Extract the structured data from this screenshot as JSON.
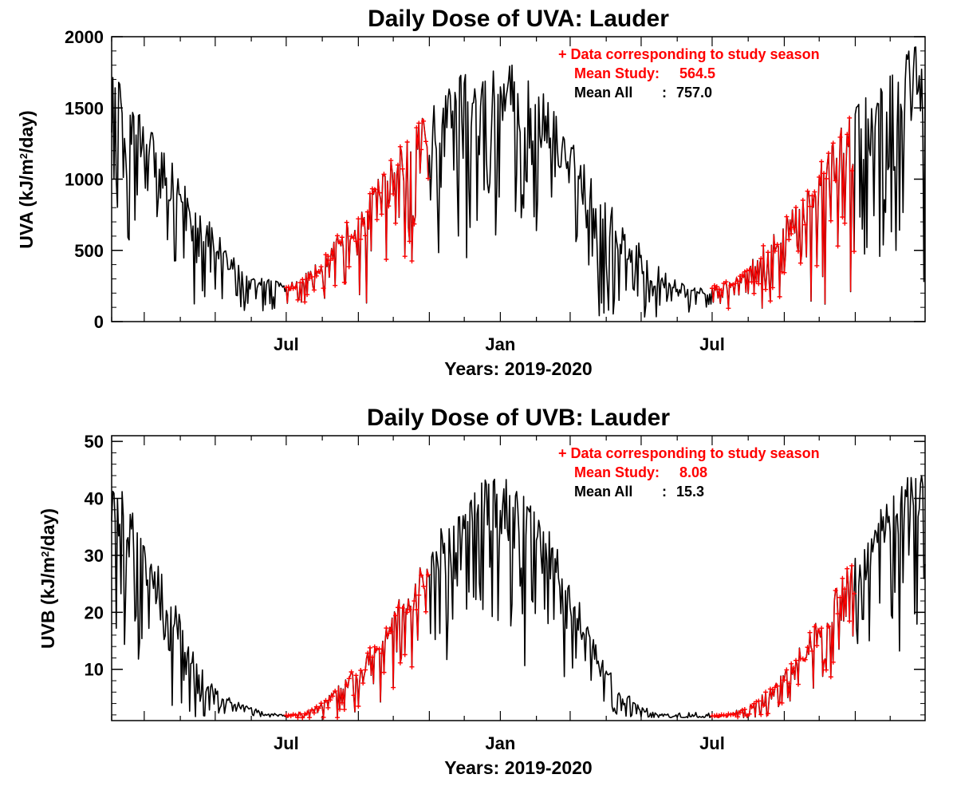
{
  "chart_data": [
    {
      "type": "line",
      "title": "Daily Dose of UVA: Lauder",
      "xlabel": "Years: 2019-2020",
      "ylabel": {
        "prefix": "UVA (kJ/m",
        "sup": "2",
        "suffix": "/day)"
      },
      "x_range": [
        "2019-02-01",
        "2020-12-31"
      ],
      "ylim": [
        0,
        2000
      ],
      "y_ticks": [
        0,
        500,
        1000,
        1500,
        2000
      ],
      "x_ticks": [
        {
          "date": "2019-07-01",
          "label": "Jul"
        },
        {
          "date": "2020-01-01",
          "label": "Jan"
        },
        {
          "date": "2020-07-01",
          "label": "Jul"
        }
      ],
      "legend": {
        "placement": "top-right",
        "study_label": "+ Data corresponding to study season",
        "mean_study_label": "Mean Study:",
        "mean_study_value": "564.5",
        "mean_all_label": "Mean All",
        "mean_all_sep": ":",
        "mean_all_value": "757.0"
      },
      "colors": {
        "all": "#000000",
        "study": "#ff0000"
      },
      "study_seasons": [
        [
          "2019-07-01",
          "2019-10-31"
        ],
        [
          "2020-07-01",
          "2020-10-31"
        ]
      ],
      "series": [
        {
          "name": "All",
          "x": [
            "2019-02-01",
            "2019-02-15",
            "2019-03-01",
            "2019-03-15",
            "2019-04-01",
            "2019-04-15",
            "2019-05-01",
            "2019-05-15",
            "2019-06-01",
            "2019-06-15",
            "2019-07-01",
            "2019-07-15",
            "2019-08-01",
            "2019-08-15",
            "2019-09-01",
            "2019-09-15",
            "2019-10-01",
            "2019-10-15",
            "2019-11-01",
            "2019-11-15",
            "2019-12-01",
            "2019-12-15",
            "2020-01-01",
            "2020-01-15",
            "2020-02-01",
            "2020-02-15",
            "2020-03-01",
            "2020-03-15",
            "2020-04-01",
            "2020-04-15",
            "2020-05-01",
            "2020-05-15",
            "2020-06-01",
            "2020-06-15",
            "2020-07-01",
            "2020-07-15",
            "2020-08-01",
            "2020-08-15",
            "2020-09-01",
            "2020-09-15",
            "2020-10-01",
            "2020-10-15",
            "2020-11-01",
            "2020-11-15",
            "2020-12-01",
            "2020-12-15",
            "2020-12-31"
          ],
          "y": [
            1500,
            1350,
            1200,
            1050,
            850,
            700,
            500,
            400,
            300,
            250,
            230,
            280,
            380,
            500,
            650,
            800,
            950,
            1100,
            1250,
            1400,
            1500,
            1550,
            1550,
            1500,
            1400,
            1250,
            1100,
            900,
            700,
            550,
            400,
            300,
            230,
            200,
            210,
            250,
            330,
            450,
            600,
            750,
            900,
            1050,
            1200,
            1350,
            1450,
            1550,
            1600
          ],
          "amplitude": [
            400,
            400,
            350,
            350,
            300,
            250,
            200,
            150,
            100,
            80,
            60,
            70,
            100,
            180,
            250,
            300,
            350,
            350,
            400,
            400,
            450,
            450,
            450,
            450,
            450,
            400,
            400,
            350,
            300,
            250,
            200,
            150,
            80,
            60,
            60,
            70,
            100,
            150,
            200,
            300,
            350,
            400,
            450,
            500,
            550,
            550,
            600
          ]
        }
      ]
    },
    {
      "type": "line",
      "title": "Daily Dose of UVB: Lauder",
      "xlabel": "Years: 2019-2020",
      "ylabel": {
        "prefix": "UVB (kJ/m",
        "sup": "2",
        "suffix": "/day)"
      },
      "x_range": [
        "2019-02-01",
        "2020-12-31"
      ],
      "ylim": [
        1,
        51
      ],
      "y_ticks": [
        10,
        20,
        30,
        40,
        50
      ],
      "x_ticks": [
        {
          "date": "2019-07-01",
          "label": "Jul"
        },
        {
          "date": "2020-01-01",
          "label": "Jan"
        },
        {
          "date": "2020-07-01",
          "label": "Jul"
        }
      ],
      "legend": {
        "placement": "top-right",
        "study_label": "+ Data corresponding to study season",
        "mean_study_label": "Mean Study:",
        "mean_study_value": "8.08",
        "mean_all_label": "Mean All",
        "mean_all_sep": ":",
        "mean_all_value": "15.3"
      },
      "colors": {
        "all": "#000000",
        "study": "#ff0000"
      },
      "study_seasons": [
        [
          "2019-07-01",
          "2019-10-31"
        ],
        [
          "2020-07-01",
          "2020-10-31"
        ]
      ],
      "series": [
        {
          "name": "All",
          "x": [
            "2019-02-01",
            "2019-02-15",
            "2019-03-01",
            "2019-03-15",
            "2019-04-01",
            "2019-04-15",
            "2019-05-01",
            "2019-05-15",
            "2019-06-01",
            "2019-06-15",
            "2019-07-01",
            "2019-07-15",
            "2019-08-01",
            "2019-08-15",
            "2019-09-01",
            "2019-09-15",
            "2019-10-01",
            "2019-10-15",
            "2019-11-01",
            "2019-11-15",
            "2019-12-01",
            "2019-12-15",
            "2020-01-01",
            "2020-01-15",
            "2020-02-01",
            "2020-02-15",
            "2020-03-01",
            "2020-03-15",
            "2020-04-01",
            "2020-04-15",
            "2020-05-01",
            "2020-05-15",
            "2020-06-01",
            "2020-06-15",
            "2020-07-01",
            "2020-07-15",
            "2020-08-01",
            "2020-08-15",
            "2020-09-01",
            "2020-09-15",
            "2020-10-01",
            "2020-10-15",
            "2020-11-01",
            "2020-11-15",
            "2020-12-01",
            "2020-12-15",
            "2020-12-31"
          ],
          "y": [
            38,
            33,
            28,
            22,
            16,
            10,
            6,
            4,
            3,
            2,
            1.8,
            2.2,
            3.5,
            6,
            9,
            13,
            17,
            22,
            27,
            31,
            35,
            37,
            38,
            36,
            33,
            28,
            22,
            15,
            9,
            5,
            3,
            2,
            1.6,
            1.5,
            1.6,
            2,
            3,
            5,
            8,
            12,
            16,
            21,
            26,
            31,
            35,
            37,
            39
          ],
          "amplitude": [
            10,
            10,
            9,
            8,
            6,
            4,
            2,
            1,
            0.6,
            0.4,
            0.3,
            0.5,
            1,
            2,
            3,
            4,
            5,
            6,
            7,
            8,
            9,
            9,
            10,
            10,
            9,
            8,
            7,
            5,
            3,
            2,
            1,
            0.5,
            0.3,
            0.3,
            0.3,
            0.5,
            1,
            1.5,
            2.5,
            3.5,
            4.5,
            6,
            7,
            8,
            9,
            10,
            11
          ]
        }
      ]
    }
  ]
}
